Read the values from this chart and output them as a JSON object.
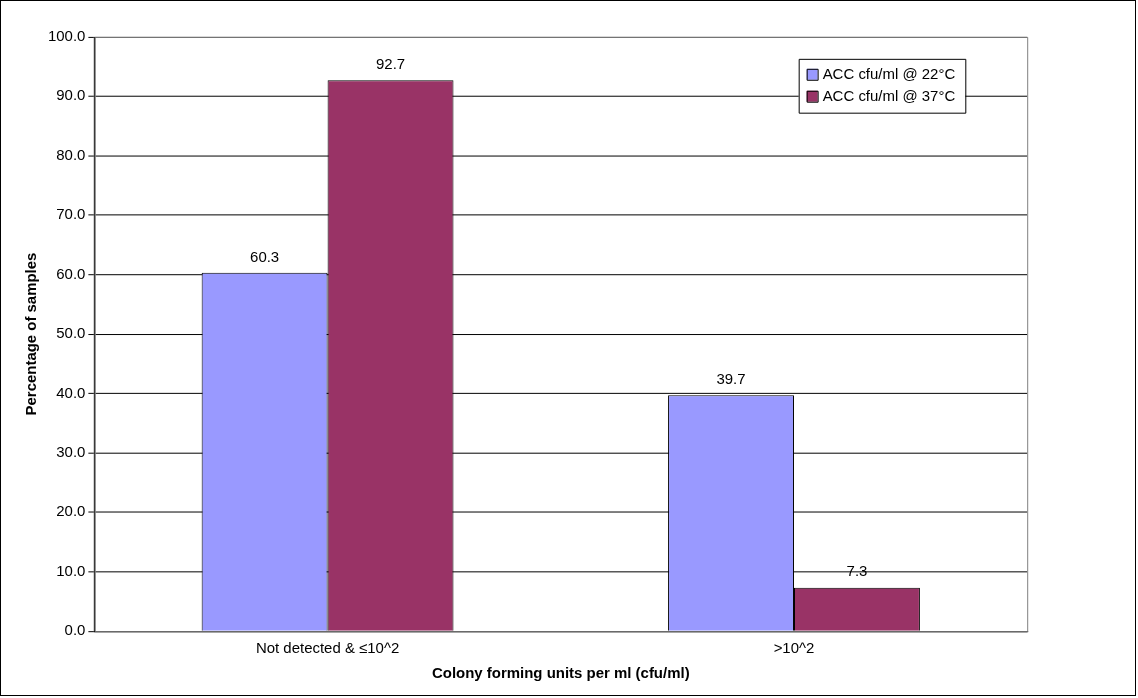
{
  "chart_data": {
    "type": "bar",
    "xlabel": "Colony forming units per ml (cfu/ml)",
    "ylabel": "Percentage of samples",
    "categories": [
      "Not detected & ≤10^2",
      ">10^2"
    ],
    "series": [
      {
        "name": "ACC cfu/ml @ 22°C",
        "color": "#9999ff",
        "values": [
          60.3,
          39.7
        ]
      },
      {
        "name": "ACC cfu/ml @ 37°C",
        "color": "#993366",
        "values": [
          92.7,
          7.3
        ]
      }
    ],
    "ylim": [
      0,
      100
    ],
    "yticks": [
      {
        "value": 0,
        "label": "0.0"
      },
      {
        "value": 10,
        "label": "10.0"
      },
      {
        "value": 20,
        "label": "20.0"
      },
      {
        "value": 30,
        "label": "30.0"
      },
      {
        "value": 40,
        "label": "40.0"
      },
      {
        "value": 50,
        "label": "50.0"
      },
      {
        "value": 60,
        "label": "60.0"
      },
      {
        "value": 70,
        "label": "70.0"
      },
      {
        "value": 80,
        "label": "80.0"
      },
      {
        "value": 90,
        "label": "90.0"
      },
      {
        "value": 100,
        "label": "100.0"
      }
    ],
    "grid": "y",
    "legend": "top right",
    "data_labels": true
  }
}
